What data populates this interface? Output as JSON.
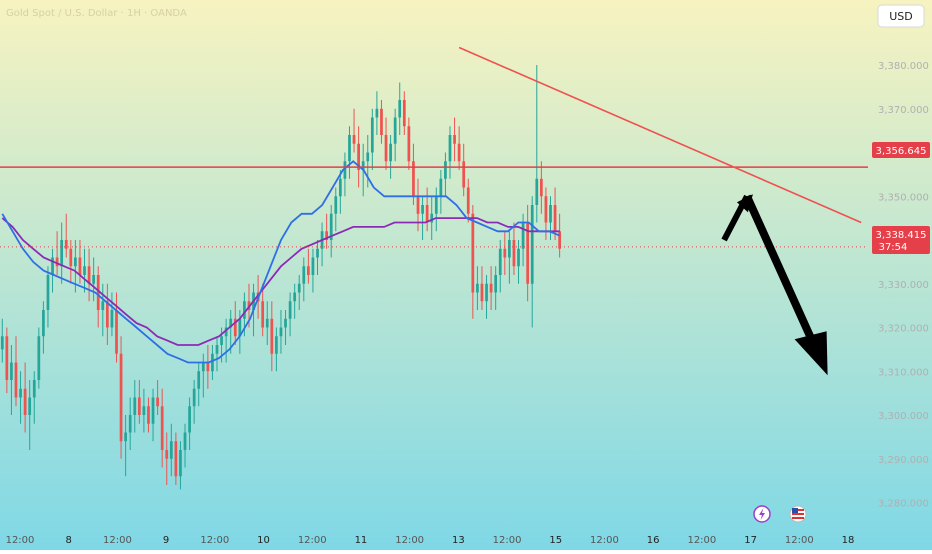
{
  "header": {
    "symbol_line": "Gold Spot / U.S. Dollar · 1H · OANDA",
    "currency_button": "USD"
  },
  "price_tags": {
    "resistance": "3,356.645",
    "current_price": "3,338.415",
    "countdown": "37:54"
  },
  "colors": {
    "bg_top": "#f7f3c0",
    "bg_bottom": "#7fd8e6",
    "up_candle": "#26a69a",
    "down_candle": "#ef5350",
    "trendline": "#f05050",
    "resistance_line": "#e53e47",
    "ma_fast": "#2f6fe6",
    "ma_slow": "#8b2bb5",
    "arrow": "#000000",
    "price_tag": "#e5404a"
  },
  "icons": {
    "lightning_badge": "lightning-icon",
    "flag_badge": "us-flag-icon"
  },
  "chart_data": {
    "type": "candlestick",
    "y_axis": {
      "ticks": [
        3280,
        3290,
        3300,
        3310,
        3320,
        3330,
        3340,
        3350,
        3360,
        3370,
        3380
      ],
      "tick_labels": [
        "3,280.000",
        "3,290.000",
        "3,300.000",
        "3,310.000",
        "3,320.000",
        "3,330.000",
        "3,340.000",
        "3,350.000",
        "3,360.000",
        "3,370.000",
        "3,380.000"
      ],
      "ylim": [
        3276,
        3388
      ]
    },
    "x_axis": {
      "labels": [
        "12:00",
        "8",
        "12:00",
        "9",
        "12:00",
        "10",
        "12:00",
        "11",
        "12:00",
        "13",
        "12:00",
        "15",
        "12:00",
        "16",
        "12:00",
        "17",
        "12:00",
        "18"
      ],
      "bold": [
        false,
        true,
        false,
        true,
        false,
        true,
        false,
        true,
        false,
        true,
        false,
        true,
        false,
        true,
        false,
        true,
        false,
        true
      ]
    },
    "ohlc": [
      [
        3315,
        3322,
        3312,
        3318
      ],
      [
        3318,
        3320,
        3305,
        3308
      ],
      [
        3308,
        3316,
        3300,
        3312
      ],
      [
        3312,
        3318,
        3302,
        3304
      ],
      [
        3304,
        3310,
        3298,
        3306
      ],
      [
        3306,
        3312,
        3296,
        3300
      ],
      [
        3300,
        3308,
        3292,
        3304
      ],
      [
        3304,
        3310,
        3298,
        3308
      ],
      [
        3308,
        3320,
        3306,
        3318
      ],
      [
        3318,
        3326,
        3314,
        3324
      ],
      [
        3324,
        3334,
        3320,
        3332
      ],
      [
        3332,
        3338,
        3328,
        3336
      ],
      [
        3336,
        3342,
        3332,
        3334
      ],
      [
        3334,
        3344,
        3330,
        3340
      ],
      [
        3340,
        3346,
        3336,
        3338
      ],
      [
        3338,
        3340,
        3330,
        3334
      ],
      [
        3334,
        3340,
        3328,
        3336
      ],
      [
        3336,
        3340,
        3330,
        3332
      ],
      [
        3332,
        3338,
        3328,
        3334
      ],
      [
        3334,
        3338,
        3326,
        3330
      ],
      [
        3330,
        3336,
        3326,
        3332
      ],
      [
        3332,
        3334,
        3320,
        3324
      ],
      [
        3324,
        3330,
        3318,
        3326
      ],
      [
        3326,
        3330,
        3316,
        3320
      ],
      [
        3320,
        3328,
        3318,
        3324
      ],
      [
        3324,
        3328,
        3312,
        3314
      ],
      [
        3314,
        3318,
        3290,
        3294
      ],
      [
        3294,
        3300,
        3286,
        3296
      ],
      [
        3296,
        3304,
        3292,
        3300
      ],
      [
        3300,
        3308,
        3296,
        3304
      ],
      [
        3304,
        3308,
        3298,
        3300
      ],
      [
        3300,
        3306,
        3296,
        3302
      ],
      [
        3302,
        3304,
        3296,
        3298
      ],
      [
        3298,
        3306,
        3294,
        3304
      ],
      [
        3304,
        3308,
        3300,
        3302
      ],
      [
        3302,
        3306,
        3288,
        3292
      ],
      [
        3292,
        3296,
        3284,
        3290
      ],
      [
        3290,
        3298,
        3286,
        3294
      ],
      [
        3294,
        3296,
        3284,
        3286
      ],
      [
        3286,
        3294,
        3283,
        3292
      ],
      [
        3292,
        3298,
        3288,
        3296
      ],
      [
        3296,
        3304,
        3292,
        3302
      ],
      [
        3302,
        3308,
        3298,
        3306
      ],
      [
        3306,
        3312,
        3302,
        3310
      ],
      [
        3310,
        3314,
        3304,
        3312
      ],
      [
        3312,
        3316,
        3306,
        3310
      ],
      [
        3310,
        3316,
        3308,
        3314
      ],
      [
        3314,
        3318,
        3310,
        3316
      ],
      [
        3316,
        3320,
        3312,
        3318
      ],
      [
        3318,
        3322,
        3312,
        3320
      ],
      [
        3320,
        3324,
        3314,
        3322
      ],
      [
        3322,
        3326,
        3316,
        3318
      ],
      [
        3318,
        3324,
        3314,
        3322
      ],
      [
        3322,
        3328,
        3318,
        3326
      ],
      [
        3326,
        3330,
        3320,
        3324
      ],
      [
        3324,
        3330,
        3318,
        3328
      ],
      [
        3328,
        3332,
        3322,
        3326
      ],
      [
        3326,
        3330,
        3318,
        3320
      ],
      [
        3320,
        3326,
        3316,
        3322
      ],
      [
        3322,
        3326,
        3310,
        3314
      ],
      [
        3314,
        3320,
        3310,
        3318
      ],
      [
        3318,
        3324,
        3314,
        3320
      ],
      [
        3320,
        3324,
        3316,
        3322
      ],
      [
        3322,
        3328,
        3318,
        3326
      ],
      [
        3326,
        3330,
        3322,
        3328
      ],
      [
        3328,
        3332,
        3324,
        3330
      ],
      [
        3330,
        3336,
        3326,
        3334
      ],
      [
        3334,
        3338,
        3330,
        3332
      ],
      [
        3332,
        3338,
        3328,
        3336
      ],
      [
        3336,
        3340,
        3332,
        3338
      ],
      [
        3338,
        3344,
        3334,
        3342
      ],
      [
        3342,
        3346,
        3338,
        3340
      ],
      [
        3340,
        3348,
        3336,
        3346
      ],
      [
        3346,
        3352,
        3342,
        3350
      ],
      [
        3350,
        3356,
        3346,
        3354
      ],
      [
        3354,
        3360,
        3350,
        3358
      ],
      [
        3358,
        3366,
        3354,
        3364
      ],
      [
        3364,
        3370,
        3360,
        3362
      ],
      [
        3362,
        3366,
        3352,
        3356
      ],
      [
        3356,
        3362,
        3350,
        3358
      ],
      [
        3358,
        3364,
        3352,
        3360
      ],
      [
        3360,
        3370,
        3356,
        3368
      ],
      [
        3368,
        3374,
        3364,
        3370
      ],
      [
        3370,
        3372,
        3362,
        3364
      ],
      [
        3364,
        3368,
        3356,
        3358
      ],
      [
        3358,
        3364,
        3354,
        3362
      ],
      [
        3362,
        3370,
        3358,
        3368
      ],
      [
        3368,
        3376,
        3364,
        3372
      ],
      [
        3372,
        3374,
        3364,
        3366
      ],
      [
        3366,
        3368,
        3356,
        3358
      ],
      [
        3358,
        3362,
        3348,
        3350
      ],
      [
        3350,
        3354,
        3342,
        3346
      ],
      [
        3346,
        3350,
        3340,
        3348
      ],
      [
        3348,
        3352,
        3342,
        3344
      ],
      [
        3344,
        3350,
        3340,
        3346
      ],
      [
        3346,
        3352,
        3342,
        3350
      ],
      [
        3350,
        3356,
        3346,
        3354
      ],
      [
        3354,
        3360,
        3350,
        3358
      ],
      [
        3358,
        3366,
        3354,
        3364
      ],
      [
        3364,
        3368,
        3358,
        3362
      ],
      [
        3362,
        3366,
        3356,
        3358
      ],
      [
        3358,
        3362,
        3350,
        3352
      ],
      [
        3352,
        3354,
        3344,
        3346
      ],
      [
        3346,
        3348,
        3322,
        3328
      ],
      [
        3328,
        3334,
        3324,
        3330
      ],
      [
        3330,
        3334,
        3324,
        3326
      ],
      [
        3326,
        3332,
        3322,
        3330
      ],
      [
        3330,
        3334,
        3324,
        3328
      ],
      [
        3328,
        3334,
        3324,
        3332
      ],
      [
        3332,
        3340,
        3328,
        3338
      ],
      [
        3338,
        3342,
        3332,
        3336
      ],
      [
        3336,
        3342,
        3330,
        3340
      ],
      [
        3340,
        3344,
        3332,
        3334
      ],
      [
        3334,
        3340,
        3330,
        3338
      ],
      [
        3338,
        3346,
        3334,
        3344
      ],
      [
        3344,
        3348,
        3326,
        3330
      ],
      [
        3330,
        3350,
        3320,
        3348
      ],
      [
        3348,
        3380,
        3344,
        3354
      ],
      [
        3354,
        3358,
        3346,
        3350
      ],
      [
        3350,
        3352,
        3340,
        3344
      ],
      [
        3344,
        3350,
        3340,
        3348
      ],
      [
        3348,
        3352,
        3340,
        3342
      ],
      [
        3342,
        3346,
        3336,
        3338
      ]
    ],
    "ma_fast": [
      3346,
      3342,
      3338,
      3335,
      3333,
      3332,
      3331,
      3330,
      3329,
      3328,
      3326,
      3324,
      3322,
      3320,
      3318,
      3316,
      3314,
      3313,
      3312,
      3312,
      3312,
      3313,
      3315,
      3318,
      3322,
      3328,
      3334,
      3340,
      3344,
      3346,
      3346,
      3348,
      3352,
      3356,
      3358,
      3356,
      3352,
      3350,
      3350,
      3350,
      3350,
      3350,
      3350,
      3350,
      3348,
      3345,
      3344,
      3343,
      3342,
      3342,
      3344,
      3344,
      3342,
      3342,
      3341
    ],
    "ma_slow": [
      3345,
      3343,
      3340,
      3338,
      3336,
      3335,
      3334,
      3333,
      3331,
      3329,
      3327,
      3325,
      3323,
      3321,
      3320,
      3318,
      3317,
      3316,
      3316,
      3316,
      3317,
      3318,
      3320,
      3322,
      3325,
      3328,
      3331,
      3334,
      3336,
      3338,
      3339,
      3340,
      3341,
      3342,
      3343,
      3343,
      3343,
      3343,
      3344,
      3344,
      3344,
      3344,
      3345,
      3345,
      3345,
      3345,
      3345,
      3344,
      3344,
      3343,
      3343,
      3342,
      3342,
      3342,
      3342
    ],
    "resistance_level": 3356.645,
    "current_price": 3338.415,
    "trendline": {
      "from": {
        "bar": 100,
        "price": 3384
      },
      "to": {
        "bar": 188,
        "price": 3344
      }
    },
    "projection": [
      {
        "bar": 158,
        "price": 3340
      },
      {
        "bar": 163,
        "price": 3350
      },
      {
        "bar": 180,
        "price": 3310
      }
    ]
  }
}
